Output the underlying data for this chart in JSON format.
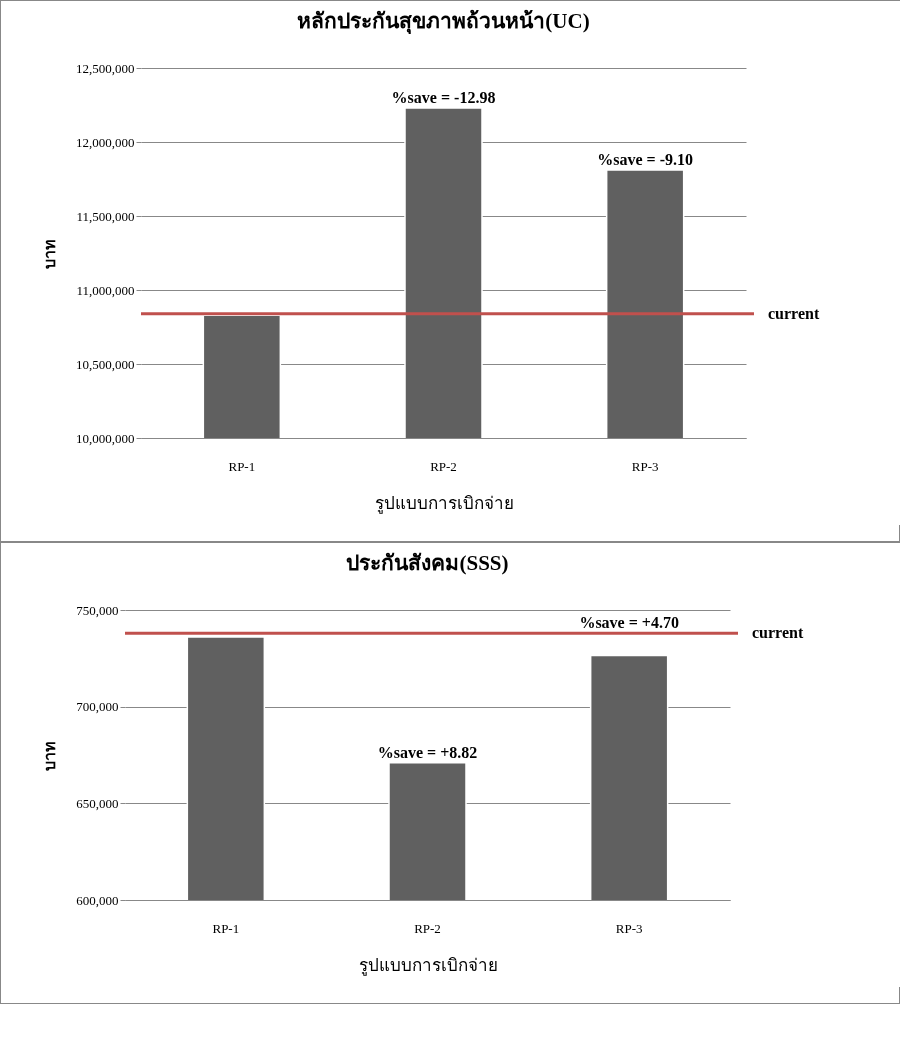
{
  "chart_data": [
    {
      "type": "bar",
      "title": "หลักประกันสุขภาพถ้วนหน้า(UC)",
      "xlabel": "รูปแบบการเบิกจ่าย",
      "ylabel": "บาท",
      "categories": [
        "RP-1",
        "RP-2",
        "RP-3"
      ],
      "values": [
        10830000,
        12230000,
        11810000
      ],
      "color": "#606060",
      "ylim": [
        10000000,
        12500000
      ],
      "yticks": [
        {
          "value": 10000000,
          "label": "10,000,000"
        },
        {
          "value": 10500000,
          "label": "10,500,000"
        },
        {
          "value": 11000000,
          "label": "11,000,000"
        },
        {
          "value": 11500000,
          "label": "11,500,000"
        },
        {
          "value": 12000000,
          "label": "12,000,000"
        },
        {
          "value": 12500000,
          "label": "12,500,000"
        }
      ],
      "grid": "y",
      "ref_lines": [
        {
          "axis": "y",
          "value": 10840000,
          "label": "current",
          "color": "#c0504d"
        }
      ],
      "annotations": [
        {
          "text": "%save = -12.98",
          "x": "RP-2",
          "y": 12230000
        },
        {
          "text": "%save = -9.10",
          "x": "RP-3",
          "y": 11810000
        }
      ]
    },
    {
      "type": "bar",
      "title": "ประกันสังคม(SSS)",
      "xlabel": "รูปแบบการเบิกจ่าย",
      "ylabel": "บาท",
      "categories": [
        "RP-1",
        "RP-2",
        "RP-3"
      ],
      "values": [
        736000,
        671000,
        726500
      ],
      "color": "#606060",
      "ylim": [
        600000,
        750000
      ],
      "yticks": [
        {
          "value": 600000,
          "label": "600,000"
        },
        {
          "value": 650000,
          "label": "650,000"
        },
        {
          "value": 700000,
          "label": "700,000"
        },
        {
          "value": 750000,
          "label": "750,000"
        }
      ],
      "grid": "y",
      "ref_lines": [
        {
          "axis": "y",
          "value": 738000,
          "label": "current",
          "color": "#c0504d"
        }
      ],
      "annotations": [
        {
          "text": "%save = +8.82",
          "x": "RP-2",
          "y": 671000
        },
        {
          "text": "%save = +4.70",
          "x": "RP-3",
          "y": 738000
        }
      ]
    }
  ]
}
